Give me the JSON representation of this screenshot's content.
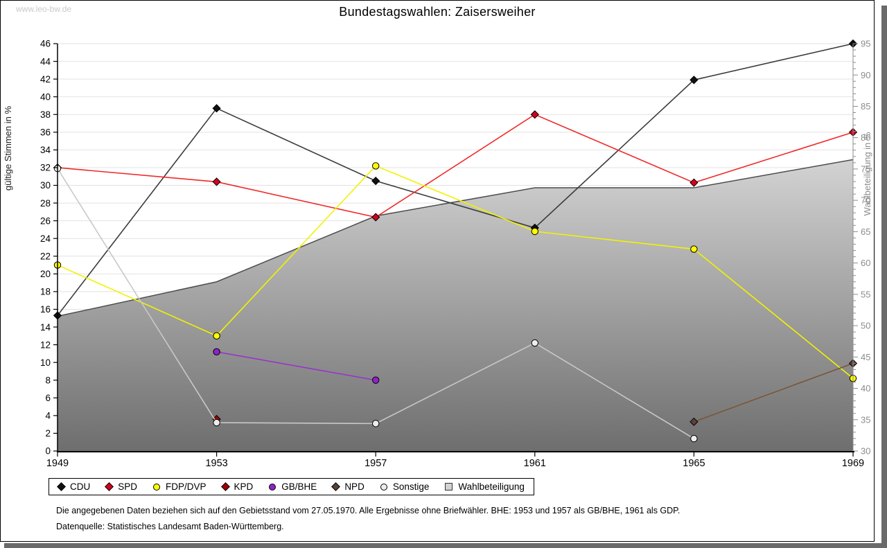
{
  "watermark": "www.leo-bw.de",
  "title": "Bundestagswahlen: Zaisersweiher",
  "footnotes": [
    "Die angegebenen Daten beziehen sich auf den Gebietsstand vom 27.05.1970. Alle Ergebnisse ohne Briefwähler. BHE: 1953 und 1957 als GB/BHE, 1961 als GDP.",
    "Datenquelle: Statistisches Landesamt Baden-Württemberg."
  ],
  "colors": {
    "gridline": "#e2e2e2",
    "axis_left": "#000000",
    "axis_right": "#8c8c8c",
    "area_top": "#fbfbfb",
    "area_bottom": "#6e6e6e",
    "area_line": "#4d4d4d",
    "area_legend": "#d2d2d2",
    "watermark": "#c9c9c9",
    "frame_shadow": "#6a6a6a"
  },
  "chart_data": {
    "type": "line",
    "title": "Bundestagswahlen: Zaisersweiher",
    "x": [
      1949,
      1953,
      1957,
      1961,
      1965,
      1969
    ],
    "left_axis": {
      "label": "gültige Stimmen in %",
      "min": 0,
      "max": 46,
      "tick_step": 2
    },
    "right_axis": {
      "label": "Wahlbeteiligung in %",
      "min": 30,
      "max": 95,
      "tick_step": 5,
      "minor_tick_step": 1
    },
    "grid": true,
    "legend_position": "bottom",
    "series": [
      {
        "name": "CDU",
        "marker": "diamond",
        "marker_color": "#111111",
        "line_color": "#3a3a3a",
        "values": [
          15.3,
          38.7,
          30.5,
          25.2,
          41.9,
          46.0
        ]
      },
      {
        "name": "SPD",
        "marker": "diamond",
        "marker_color": "#d5001f",
        "line_color": "#ef2929",
        "values": [
          32.0,
          30.4,
          26.4,
          38.0,
          30.3,
          36.0
        ]
      },
      {
        "name": "FDP/DVP",
        "marker": "circle",
        "marker_color": "#ffff00",
        "line_color": "#f2f200",
        "values": [
          21.0,
          13.0,
          32.2,
          24.8,
          22.8,
          8.2
        ]
      },
      {
        "name": "KPD",
        "marker": "diamond",
        "marker_color": "#a00000",
        "line_color": "#a00000",
        "values": [
          null,
          3.6,
          null,
          null,
          null,
          null
        ]
      },
      {
        "name": "GB/BHE",
        "marker": "circle",
        "marker_color": "#8d23c8",
        "line_color": "#9933cc",
        "values": [
          null,
          11.2,
          8.0,
          null,
          null,
          null
        ]
      },
      {
        "name": "NPD",
        "marker": "diamond",
        "marker_color": "#5d4037",
        "line_color": "#7a5536",
        "values": [
          null,
          null,
          null,
          null,
          3.3,
          9.9
        ]
      },
      {
        "name": "Sonstige",
        "marker": "circle",
        "marker_color": "#ededed",
        "line_color": "#c8c8c8",
        "values": [
          31.9,
          3.2,
          3.1,
          12.2,
          1.4,
          null
        ]
      }
    ],
    "turnout": {
      "name": "Wahlbeteiligung",
      "axis": "right",
      "style": "area",
      "values": [
        51.5,
        57.0,
        67.5,
        72.0,
        72.0,
        76.5
      ]
    }
  }
}
